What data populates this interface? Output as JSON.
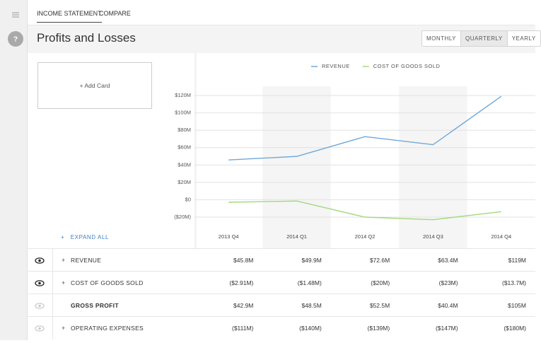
{
  "tabs": [
    "INCOME STATEMENT",
    "COMPARE"
  ],
  "header": {
    "title": "Profits and Losses",
    "periods": [
      "MONTHLY",
      "QUARTERLY",
      "YEARLY"
    ]
  },
  "add_card": "+ Add Card",
  "expand_all": "EXPAND ALL",
  "chart_data": {
    "type": "line",
    "categories": [
      "2013 Q4",
      "2014 Q1",
      "2014 Q2",
      "2014 Q3",
      "2014 Q4"
    ],
    "series": [
      {
        "name": "REVENUE",
        "color": "#6fa8d8",
        "values": [
          45.8,
          49.9,
          72.6,
          63.4,
          119
        ]
      },
      {
        "name": "COST OF GOODS SOLD",
        "color": "#a3d97f",
        "values": [
          -2.91,
          -1.48,
          -20,
          -23,
          -13.7
        ]
      }
    ],
    "ylim": [
      -20,
      120
    ],
    "yticks": [
      {
        "value": -20,
        "label": "($20M)"
      },
      {
        "value": 0,
        "label": "$0"
      },
      {
        "value": 20,
        "label": "$20M"
      },
      {
        "value": 40,
        "label": "$40M"
      },
      {
        "value": 60,
        "label": "$60M"
      },
      {
        "value": 80,
        "label": "$80M"
      },
      {
        "value": 100,
        "label": "$100M"
      },
      {
        "value": 120,
        "label": "$120M"
      }
    ],
    "grid": true
  },
  "table": {
    "rows": [
      {
        "label": "REVENUE",
        "values": [
          "$45.8M",
          "$49.9M",
          "$72.6M",
          "$63.4M",
          "$119M"
        ]
      },
      {
        "label": "COST OF GOODS SOLD",
        "values": [
          "($2.91M)",
          "($1.48M)",
          "($20M)",
          "($23M)",
          "($13.7M)"
        ]
      },
      {
        "label": "GROSS PROFIT",
        "values": [
          "$42.9M",
          "$48.5M",
          "$52.5M",
          "$40.4M",
          "$105M"
        ]
      },
      {
        "label": "OPERATING EXPENSES",
        "values": [
          "($111M)",
          "($140M)",
          "($139M)",
          "($147M)",
          "($180M)"
        ]
      }
    ]
  }
}
